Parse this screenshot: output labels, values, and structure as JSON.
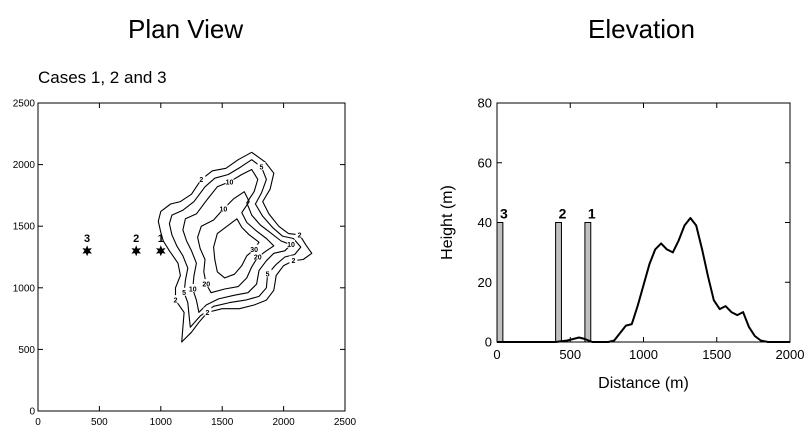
{
  "chart_data": [
    {
      "type": "contour",
      "title": "Plan View",
      "subtitle": "Cases 1, 2 and 3",
      "xlabel": "",
      "ylabel": "",
      "xlim": [
        0,
        2500
      ],
      "ylim": [
        0,
        2500
      ],
      "xticks": [
        0,
        500,
        1000,
        1500,
        2000,
        2500
      ],
      "yticks": [
        0,
        500,
        1000,
        1500,
        2000,
        2500
      ],
      "sources": [
        {
          "label": "3",
          "x": 400,
          "y": 1300
        },
        {
          "label": "2",
          "x": 800,
          "y": 1300
        },
        {
          "label": "1",
          "x": 1000,
          "y": 1300
        }
      ],
      "contour_labels": [
        "2",
        "2",
        "5",
        "10",
        "20",
        "30",
        "2",
        "10",
        "20",
        "2",
        "5",
        "10",
        "5",
        "2",
        "10"
      ],
      "contours": [
        {
          "level": "2",
          "points": [
            [
              1000,
              1620
            ],
            [
              1080,
              1680
            ],
            [
              1160,
              1700
            ],
            [
              1250,
              1760
            ],
            [
              1330,
              1880
            ],
            [
              1420,
              1950
            ],
            [
              1530,
              1970
            ],
            [
              1630,
              2040
            ],
            [
              1740,
              2100
            ],
            [
              1850,
              2020
            ],
            [
              1920,
              1930
            ],
            [
              1890,
              1800
            ],
            [
              1830,
              1700
            ],
            [
              1880,
              1600
            ],
            [
              1960,
              1500
            ],
            [
              2040,
              1440
            ],
            [
              2130,
              1430
            ],
            [
              2180,
              1350
            ],
            [
              2230,
              1280
            ],
            [
              2160,
              1230
            ],
            [
              2080,
              1220
            ],
            [
              2000,
              1180
            ],
            [
              1940,
              1100
            ],
            [
              1920,
              980
            ],
            [
              1860,
              900
            ],
            [
              1760,
              860
            ],
            [
              1640,
              830
            ],
            [
              1500,
              830
            ],
            [
              1380,
              800
            ],
            [
              1310,
              720
            ],
            [
              1250,
              640
            ],
            [
              1170,
              560
            ],
            [
              1180,
              680
            ],
            [
              1190,
              800
            ],
            [
              1120,
              900
            ],
            [
              1120,
              1000
            ],
            [
              1160,
              1100
            ],
            [
              1140,
              1200
            ],
            [
              1070,
              1300
            ],
            [
              1020,
              1380
            ],
            [
              1000,
              1450
            ],
            [
              980,
              1540
            ],
            [
              1000,
              1620
            ]
          ]
        },
        {
          "level": "5",
          "points": [
            [
              1090,
              1590
            ],
            [
              1180,
              1630
            ],
            [
              1270,
              1700
            ],
            [
              1360,
              1820
            ],
            [
              1440,
              1890
            ],
            [
              1550,
              1920
            ],
            [
              1650,
              1980
            ],
            [
              1740,
              2040
            ],
            [
              1820,
              1980
            ],
            [
              1860,
              1880
            ],
            [
              1820,
              1770
            ],
            [
              1770,
              1680
            ],
            [
              1830,
              1580
            ],
            [
              1910,
              1490
            ],
            [
              1990,
              1420
            ],
            [
              2080,
              1400
            ],
            [
              2140,
              1330
            ],
            [
              2090,
              1270
            ],
            [
              2010,
              1250
            ],
            [
              1940,
              1190
            ],
            [
              1870,
              1110
            ],
            [
              1860,
              1000
            ],
            [
              1800,
              930
            ],
            [
              1690,
              900
            ],
            [
              1560,
              880
            ],
            [
              1430,
              850
            ],
            [
              1320,
              770
            ],
            [
              1240,
              680
            ],
            [
              1230,
              780
            ],
            [
              1220,
              880
            ],
            [
              1190,
              960
            ],
            [
              1200,
              1060
            ],
            [
              1220,
              1160
            ],
            [
              1180,
              1260
            ],
            [
              1130,
              1340
            ],
            [
              1090,
              1430
            ],
            [
              1070,
              1520
            ],
            [
              1090,
              1590
            ]
          ]
        },
        {
          "level": "10",
          "points": [
            [
              1200,
              1560
            ],
            [
              1290,
              1600
            ],
            [
              1380,
              1720
            ],
            [
              1460,
              1820
            ],
            [
              1560,
              1860
            ],
            [
              1660,
              1920
            ],
            [
              1740,
              1960
            ],
            [
              1790,
              1880
            ],
            [
              1760,
              1780
            ],
            [
              1700,
              1690
            ],
            [
              1740,
              1590
            ],
            [
              1810,
              1510
            ],
            [
              1890,
              1450
            ],
            [
              1980,
              1380
            ],
            [
              2060,
              1350
            ],
            [
              2010,
              1300
            ],
            [
              1920,
              1280
            ],
            [
              1860,
              1220
            ],
            [
              1800,
              1140
            ],
            [
              1780,
              1030
            ],
            [
              1710,
              960
            ],
            [
              1600,
              940
            ],
            [
              1470,
              910
            ],
            [
              1370,
              860
            ],
            [
              1310,
              800
            ],
            [
              1290,
              900
            ],
            [
              1260,
              990
            ],
            [
              1270,
              1100
            ],
            [
              1290,
              1200
            ],
            [
              1250,
              1300
            ],
            [
              1210,
              1380
            ],
            [
              1180,
              1470
            ],
            [
              1200,
              1560
            ]
          ]
        },
        {
          "level": "20",
          "points": [
            [
              1330,
              1500
            ],
            [
              1430,
              1550
            ],
            [
              1510,
              1640
            ],
            [
              1590,
              1720
            ],
            [
              1680,
              1780
            ],
            [
              1720,
              1700
            ],
            [
              1660,
              1610
            ],
            [
              1700,
              1530
            ],
            [
              1780,
              1460
            ],
            [
              1860,
              1400
            ],
            [
              1920,
              1340
            ],
            [
              1860,
              1300
            ],
            [
              1790,
              1250
            ],
            [
              1740,
              1170
            ],
            [
              1700,
              1080
            ],
            [
              1630,
              1010
            ],
            [
              1520,
              990
            ],
            [
              1410,
              960
            ],
            [
              1370,
              1030
            ],
            [
              1350,
              1130
            ],
            [
              1360,
              1230
            ],
            [
              1320,
              1320
            ],
            [
              1300,
              1410
            ],
            [
              1330,
              1500
            ]
          ]
        },
        {
          "level": "30",
          "points": [
            [
              1460,
              1440
            ],
            [
              1540,
              1500
            ],
            [
              1620,
              1560
            ],
            [
              1660,
              1490
            ],
            [
              1720,
              1430
            ],
            [
              1800,
              1370
            ],
            [
              1760,
              1310
            ],
            [
              1700,
              1260
            ],
            [
              1660,
              1180
            ],
            [
              1600,
              1110
            ],
            [
              1520,
              1080
            ],
            [
              1460,
              1130
            ],
            [
              1440,
              1230
            ],
            [
              1430,
              1330
            ],
            [
              1460,
              1440
            ]
          ]
        }
      ]
    },
    {
      "type": "line",
      "title": "Elevation",
      "xlabel": "Distance (m)",
      "ylabel": "Height (m)",
      "xlim": [
        0,
        2000
      ],
      "ylim": [
        0,
        80
      ],
      "xticks": [
        0,
        500,
        1000,
        1500,
        2000
      ],
      "yticks": [
        0,
        20,
        40,
        60,
        80
      ],
      "bars": [
        {
          "label": "3",
          "x0": 0,
          "x1": 40,
          "height": 40
        },
        {
          "label": "2",
          "x0": 400,
          "x1": 440,
          "height": 40
        },
        {
          "label": "1",
          "x0": 600,
          "x1": 640,
          "height": 40
        }
      ],
      "series": [
        {
          "x": [
            0,
            100,
            200,
            300,
            400,
            480,
            520,
            560,
            600,
            650,
            700,
            760,
            800,
            840,
            880,
            920,
            960,
            1000,
            1040,
            1080,
            1120,
            1160,
            1200,
            1240,
            1280,
            1320,
            1360,
            1400,
            1440,
            1480,
            1520,
            1560,
            1600,
            1640,
            1680,
            1720,
            1760,
            1800,
            1850,
            1900,
            2000
          ],
          "y": [
            0,
            0,
            0,
            0,
            0,
            0.5,
            1,
            1.5,
            1,
            0,
            0,
            0,
            0.5,
            3,
            5.5,
            6,
            12,
            19,
            26,
            31,
            33,
            31,
            30,
            34,
            39,
            41.5,
            39,
            31,
            22,
            14,
            11,
            12,
            10,
            9,
            10,
            5,
            2,
            0.5,
            0,
            0,
            0
          ]
        }
      ]
    }
  ]
}
